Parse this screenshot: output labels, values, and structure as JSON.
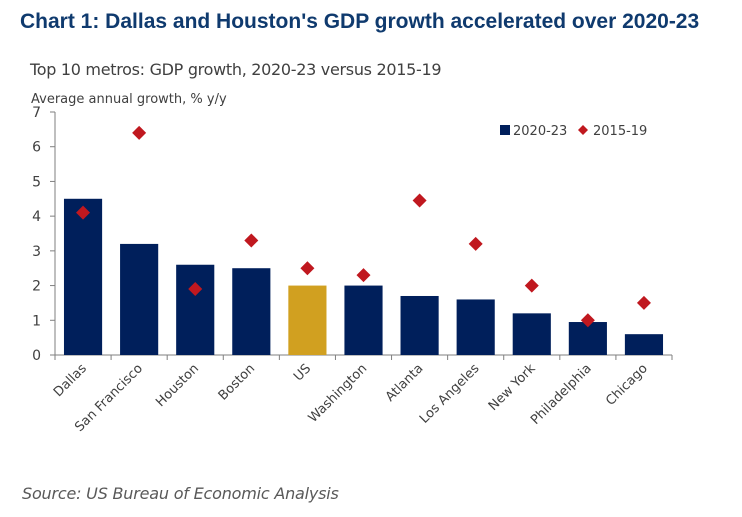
{
  "title": "Chart 1: Dallas and Houston's GDP growth accelerated over 2020-23",
  "source": "Source: US Bureau of Economic Analysis",
  "chart_data": {
    "type": "bar",
    "title": "Top 10 metros: GDP growth, 2020-23 versus 2015-19",
    "ylabel": "Average annual growth, % y/y",
    "xlabel": "",
    "ylim": [
      0,
      7
    ],
    "yticks": [
      0,
      1,
      2,
      3,
      4,
      5,
      6,
      7
    ],
    "grid": false,
    "legend_position": "top-right",
    "categories": [
      "Dallas",
      "San Francisco",
      "Houston",
      "Boston",
      "US",
      "Washington",
      "Atlanta",
      "Los Angeles",
      "New York",
      "Philadelphia",
      "Chicago"
    ],
    "series": [
      {
        "name": "2020-23",
        "mark": "bar",
        "color": "#001f5b",
        "highlight": {
          "category": "US",
          "color": "#d1a020"
        },
        "values": [
          4.5,
          3.2,
          2.6,
          2.5,
          2.0,
          2.0,
          1.7,
          1.6,
          1.2,
          0.95,
          0.6
        ]
      },
      {
        "name": "2015-19",
        "mark": "diamond",
        "color": "#c0181f",
        "values": [
          4.1,
          6.4,
          1.9,
          3.3,
          2.5,
          2.3,
          4.45,
          3.2,
          2.0,
          1.0,
          1.5
        ]
      }
    ]
  }
}
